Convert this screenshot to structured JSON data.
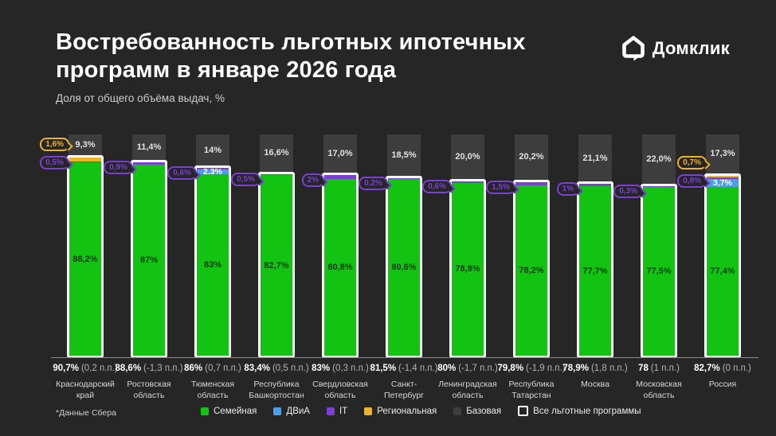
{
  "header": {
    "title_line1": "Востребованность льготных ипотечных",
    "title_line2": "программ в январе 2026 года",
    "subtitle": "Доля от общего объёма выдач, %"
  },
  "logo": {
    "text": "Домклик"
  },
  "footnote": "*Данные Сбера",
  "colors": {
    "background": "#262626",
    "family": "#12c312",
    "dvia": "#4b9fe6",
    "it": "#7c3fd3",
    "regional": "#eeb22b",
    "base": "#3d3d3d",
    "outline": "#ffffff",
    "baseline": "#8a8a8a"
  },
  "legend": [
    {
      "key": "family",
      "label": "Семейная",
      "swatch": "fill"
    },
    {
      "key": "dvia",
      "label": "ДВиА",
      "swatch": "fill"
    },
    {
      "key": "it",
      "label": "IT",
      "swatch": "fill"
    },
    {
      "key": "regional",
      "label": "Региональная",
      "swatch": "fill"
    },
    {
      "key": "base",
      "label": "Базовая",
      "swatch": "fill"
    },
    {
      "key": "outline",
      "label": "Все льготные программы",
      "swatch": "outline"
    }
  ],
  "chart_data": {
    "type": "bar",
    "variant": "100-percent-stacked-vertical",
    "unit": "%",
    "ylim": [
      0,
      100
    ],
    "grid": false,
    "legend_position": "bottom",
    "series_names": {
      "family": "Семейная",
      "dvia": "ДВиА",
      "it": "IT",
      "regional": "Региональная",
      "base": "Базовая",
      "outline": "Все льготные программы"
    },
    "regions": [
      {
        "name": "Краснодарский край",
        "total_pct": 90.7,
        "total_label": "90,7%",
        "change": "(0,2 п.п.)",
        "family": 88.2,
        "family_label": "88,2%",
        "dvia": 0,
        "dvia_label": "",
        "it": 0.5,
        "it_callout": "0,5%",
        "regional": 1.6,
        "regional_callout": "1,6%",
        "base": 9.3,
        "base_label": "9,3%"
      },
      {
        "name": "Ростовская область",
        "total_pct": 88.6,
        "total_label": "88,6%",
        "change": "(-1,3 п.п.)",
        "family": 87,
        "family_label": "87%",
        "dvia": 0,
        "dvia_label": "",
        "it": 0.9,
        "it_callout": "0,9%",
        "regional": 0,
        "regional_callout": "",
        "base": 11.4,
        "base_label": "11,4%"
      },
      {
        "name": "Тюменская область",
        "total_pct": 86,
        "total_label": "86%",
        "change": "(0,7 п.п.)",
        "family": 83,
        "family_label": "83%",
        "dvia": 2.3,
        "dvia_label": "2,3%",
        "it": 0.6,
        "it_callout": "0,6%",
        "regional": 0,
        "regional_callout": "",
        "base": 14,
        "base_label": "14%"
      },
      {
        "name": "Республика Башкортостан",
        "total_pct": 83.4,
        "total_label": "83,4%",
        "change": "(0,5 п.п.)",
        "family": 82.7,
        "family_label": "82,7%",
        "dvia": 0,
        "dvia_label": "",
        "it": 0.5,
        "it_callout": "0,5%",
        "regional": 0,
        "regional_callout": "",
        "base": 16.6,
        "base_label": "16,6%"
      },
      {
        "name": "Свердловская область",
        "total_pct": 83,
        "total_label": "83%",
        "change": "(0,3 п.п.)",
        "family": 80.8,
        "family_label": "80,8%",
        "dvia": 0,
        "dvia_label": "",
        "it": 2,
        "it_callout": "2%",
        "regional": 0,
        "regional_callout": "",
        "base": 17,
        "base_label": "17,0%"
      },
      {
        "name": "Санкт-Петербург",
        "total_pct": 81.5,
        "total_label": "81,5%",
        "change": "(-1,4 п.п.)",
        "family": 80.6,
        "family_label": "80,6%",
        "dvia": 0,
        "dvia_label": "",
        "it": 0.2,
        "it_callout": "0,2%",
        "regional": 0,
        "regional_callout": "",
        "base": 18.5,
        "base_label": "18,5%"
      },
      {
        "name": "Ленинградская область",
        "total_pct": 80,
        "total_label": "80%",
        "change": "(-1,7 п.п.)",
        "family": 78.8,
        "family_label": "78,8%",
        "dvia": 0,
        "dvia_label": "",
        "it": 0.6,
        "it_callout": "0,6%",
        "regional": 0,
        "regional_callout": "",
        "base": 20,
        "base_label": "20,0%"
      },
      {
        "name": "Республика Татарстан",
        "total_pct": 79.8,
        "total_label": "79,8%",
        "change": "(-1,9 п.п.)",
        "family": 78.2,
        "family_label": "78,2%",
        "dvia": 0,
        "dvia_label": "",
        "it": 1.5,
        "it_callout": "1,5%",
        "regional": 0,
        "regional_callout": "",
        "base": 20.2,
        "base_label": "20,2%"
      },
      {
        "name": "Москва",
        "total_pct": 78.9,
        "total_label": "78,9%",
        "change": "(1,8 п.п.)",
        "family": 77.7,
        "family_label": "77,7%",
        "dvia": 0,
        "dvia_label": "",
        "it": 1,
        "it_callout": "1%",
        "regional": 0,
        "regional_callout": "",
        "base": 21.1,
        "base_label": "21,1%"
      },
      {
        "name": "Московская область",
        "total_pct": 78,
        "total_label": "78",
        "change": "(1 п.п.)",
        "family": 77.5,
        "family_label": "77,5%",
        "dvia": 0,
        "dvia_label": "",
        "it": 0.3,
        "it_callout": "0,3%",
        "regional": 0,
        "regional_callout": "",
        "base": 22,
        "base_label": "22,0%"
      },
      {
        "name": "Россия",
        "total_pct": 82.7,
        "total_label": "82,7%",
        "change": "(0 п.п.)",
        "family": 77.4,
        "family_label": "77,4%",
        "dvia": 3.7,
        "dvia_label": "3,7%",
        "it": 0.8,
        "it_callout": "0,8%",
        "regional": 0.7,
        "regional_callout": "0,7%",
        "base": 17.3,
        "base_label": "17,3%"
      }
    ]
  }
}
